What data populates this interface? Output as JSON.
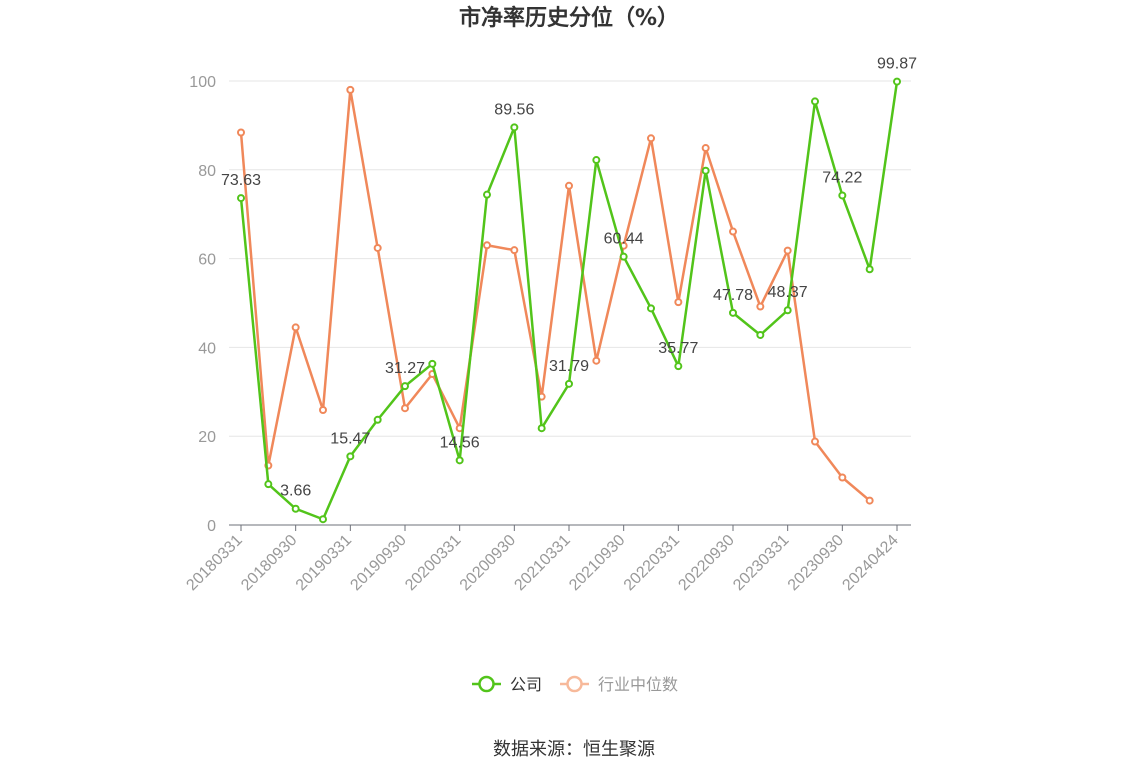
{
  "chart_data": {
    "type": "line",
    "title": "市净率历史分位（%）",
    "source": "数据来源：恒生聚源",
    "ylim": [
      0,
      100
    ],
    "yticks": [
      0,
      20,
      40,
      60,
      80,
      100
    ],
    "x": [
      "20180331",
      "20180630",
      "20180930",
      "20181231",
      "20190331",
      "20190630",
      "20190930",
      "20191231",
      "20200331",
      "20200630",
      "20200930",
      "20201231",
      "20210331",
      "20210630",
      "20210930",
      "20211231",
      "20220331",
      "20220630",
      "20220930",
      "20221231",
      "20230331",
      "20230630",
      "20230930",
      "20231231",
      "20240424"
    ],
    "xtick_labels": [
      "20180331",
      "20180930",
      "20190331",
      "20190930",
      "20200331",
      "20200930",
      "20210331",
      "20210930",
      "20220331",
      "20220930",
      "20230331",
      "20230930",
      "20240424"
    ],
    "grid": true,
    "legend_position": "bottom",
    "series": [
      {
        "name": "公司",
        "color": "#52c41a",
        "values": [
          73.63,
          9.2,
          3.66,
          1.3,
          15.47,
          23.7,
          31.27,
          36.3,
          14.56,
          74.4,
          89.56,
          21.8,
          31.79,
          82.2,
          60.44,
          48.8,
          35.77,
          79.8,
          47.78,
          42.8,
          48.37,
          95.4,
          74.22,
          57.6,
          99.87
        ],
        "labels": {
          "0": "73.63",
          "2": "3.66",
          "4": "15.47",
          "6": "31.27",
          "8": "14.56",
          "10": "89.56",
          "12": "31.79",
          "14": "60.44",
          "16": "35.77",
          "18": "47.78",
          "20": "48.37",
          "22": "74.22",
          "24": "99.87"
        }
      },
      {
        "name": "行业中位数",
        "color": "#f0885a",
        "values": [
          88.4,
          13.4,
          44.5,
          25.9,
          98.0,
          62.4,
          26.3,
          34.0,
          21.8,
          63.0,
          61.9,
          28.9,
          76.4,
          37.0,
          62.9,
          87.1,
          50.2,
          84.9,
          66.1,
          49.2,
          61.8,
          18.8,
          10.7,
          5.5,
          null
        ]
      }
    ]
  }
}
